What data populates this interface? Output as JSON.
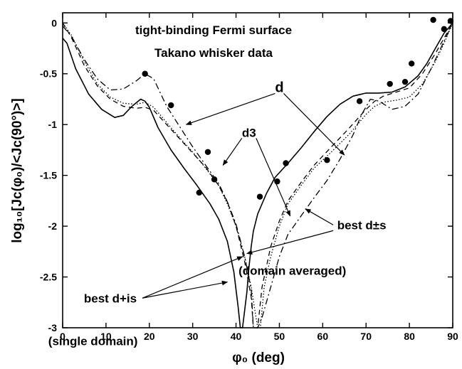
{
  "chart_data": {
    "type": "line",
    "title_lines": [
      "tight-binding Fermi surface",
      "Takano whisker data"
    ],
    "xlabel": "φ₀ (deg)",
    "ylabel": "log₁₀[Jᴄ(φ₀)/<Jᴄ(90°)>]",
    "xlim": [
      0,
      90
    ],
    "ylim": [
      -3,
      0.1
    ],
    "x_ticks": [
      "0",
      "10",
      "20",
      "30",
      "40",
      "50",
      "60",
      "70",
      "80",
      "90"
    ],
    "y_ticks": [
      "0",
      "-0.5",
      "-1",
      "-1.5",
      "-2",
      "-2.5",
      "-3"
    ],
    "grid": false,
    "series": [
      {
        "name": "d",
        "style": "dotted",
        "x": [
          0,
          2,
          5,
          8,
          11,
          14,
          17,
          19,
          21,
          24,
          27,
          30,
          33,
          36,
          38,
          40,
          42,
          43.5,
          45,
          45.6,
          46.5,
          48,
          50,
          52,
          55,
          58,
          62,
          66,
          70,
          72,
          74,
          77,
          80,
          83,
          86,
          88,
          90
        ],
        "y": [
          0,
          -0.12,
          -0.38,
          -0.6,
          -0.73,
          -0.79,
          -0.8,
          -0.78,
          -0.83,
          -0.98,
          -1.13,
          -1.27,
          -1.43,
          -1.6,
          -1.78,
          -2.0,
          -2.3,
          -2.6,
          -3.0,
          -3.0,
          -2.6,
          -2.3,
          -2.0,
          -1.78,
          -1.6,
          -1.43,
          -1.27,
          -1.1,
          -0.9,
          -0.82,
          -0.78,
          -0.76,
          -0.73,
          -0.6,
          -0.38,
          -0.2,
          0
        ]
      },
      {
        "name": "d3",
        "style": "dashed",
        "x": [
          0,
          2,
          5,
          8,
          11,
          14,
          17,
          19,
          21,
          24,
          27,
          30,
          33,
          36,
          38,
          40,
          42,
          43.5,
          44,
          45,
          46,
          48,
          50,
          52,
          55,
          58,
          62,
          66,
          70,
          72,
          74,
          77,
          80,
          83,
          86,
          88,
          90
        ],
        "y": [
          0,
          -0.14,
          -0.42,
          -0.62,
          -0.75,
          -0.82,
          -0.84,
          -0.83,
          -0.86,
          -1.0,
          -1.14,
          -1.28,
          -1.42,
          -1.6,
          -1.76,
          -2.0,
          -2.35,
          -2.7,
          -3.0,
          -3.0,
          -2.6,
          -2.2,
          -1.95,
          -1.75,
          -1.57,
          -1.4,
          -1.22,
          -1.04,
          -0.85,
          -0.77,
          -0.72,
          -0.68,
          -0.64,
          -0.5,
          -0.3,
          -0.15,
          0
        ]
      },
      {
        "name": "best d±s (domain averaged)",
        "style": "dashdot",
        "x": [
          0,
          2,
          5,
          8,
          11,
          14,
          17,
          19,
          21,
          24,
          27,
          30,
          33,
          36,
          38,
          40,
          42,
          43.5,
          44,
          45,
          46,
          48,
          50,
          52,
          55,
          58,
          61,
          64,
          67,
          69,
          71,
          73,
          76,
          79,
          82,
          85,
          88,
          90
        ],
        "y": [
          -0.03,
          -0.13,
          -0.36,
          -0.55,
          -0.66,
          -0.65,
          -0.57,
          -0.5,
          -0.55,
          -0.82,
          -1.02,
          -1.22,
          -1.4,
          -1.58,
          -1.76,
          -1.98,
          -2.3,
          -2.62,
          -3.0,
          -3.0,
          -2.9,
          -2.6,
          -2.3,
          -2.08,
          -1.9,
          -1.72,
          -1.55,
          -1.34,
          -1.1,
          -0.9,
          -0.75,
          -0.77,
          -0.85,
          -0.82,
          -0.7,
          -0.45,
          -0.18,
          0
        ]
      },
      {
        "name": "best d+is (single domain)",
        "style": "solid",
        "x": [
          0,
          1,
          3,
          6,
          9,
          12,
          14,
          16,
          18,
          19,
          20,
          22,
          25,
          28,
          31,
          34,
          36,
          38,
          39.5,
          40.5,
          41,
          41.5,
          42.5,
          43,
          43.5,
          44,
          45,
          47,
          49,
          52,
          55,
          58,
          61,
          64,
          67,
          70,
          73,
          76,
          79,
          82,
          84,
          86,
          88,
          90
        ],
        "y": [
          -0.15,
          -0.2,
          -0.45,
          -0.7,
          -0.85,
          -0.93,
          -0.91,
          -0.82,
          -0.75,
          -0.77,
          -0.83,
          -1.03,
          -1.25,
          -1.43,
          -1.6,
          -1.78,
          -1.93,
          -2.15,
          -2.45,
          -2.8,
          -3.0,
          -3.0,
          -2.65,
          -2.4,
          -2.2,
          -2.05,
          -1.88,
          -1.68,
          -1.52,
          -1.38,
          -1.23,
          -1.07,
          -0.92,
          -0.8,
          -0.72,
          -0.69,
          -0.69,
          -0.68,
          -0.63,
          -0.52,
          -0.4,
          -0.25,
          -0.1,
          0
        ]
      }
    ],
    "points": {
      "name": "Takano whisker data",
      "x": [
        19,
        25,
        31.5,
        33.5,
        35,
        45.5,
        49.5,
        51.5,
        61,
        68.5,
        75.5,
        79,
        80.5,
        85.5,
        88,
        89.5
      ],
      "y": [
        -0.5,
        -0.81,
        -1.67,
        -1.27,
        -1.54,
        -1.71,
        -1.56,
        -1.38,
        -1.35,
        -0.77,
        -0.6,
        -0.58,
        -0.4,
        0.03,
        -0.06,
        0.02
      ]
    },
    "annotations": [
      {
        "text": "d",
        "x": 50,
        "y": -0.68,
        "big": true,
        "arrows": [
          [
            28.5,
            -1.0
          ],
          [
            65,
            -1.3
          ]
        ]
      },
      {
        "text": "d3",
        "x": 43,
        "y": -1.12,
        "big": false,
        "arrows": [
          [
            37,
            -1.4
          ],
          [
            52.5,
            -1.9
          ]
        ]
      },
      {
        "text": "best d±s",
        "x": 69,
        "y": -2.03,
        "big": false,
        "arrows": [
          [
            42.5,
            -2.27
          ],
          [
            56,
            -1.83
          ]
        ]
      },
      {
        "text": "(domain averaged)",
        "x": 53,
        "y": -2.48,
        "big": false,
        "arrows": []
      },
      {
        "text": "best d+is",
        "x": 11,
        "y": -2.75,
        "big": false,
        "arrows": [
          [
            38,
            -2.55
          ],
          [
            41.5,
            -2.3
          ]
        ]
      },
      {
        "text": "(single domain)",
        "x": 7,
        "y": -3.17,
        "big": false,
        "arrows": []
      }
    ]
  }
}
